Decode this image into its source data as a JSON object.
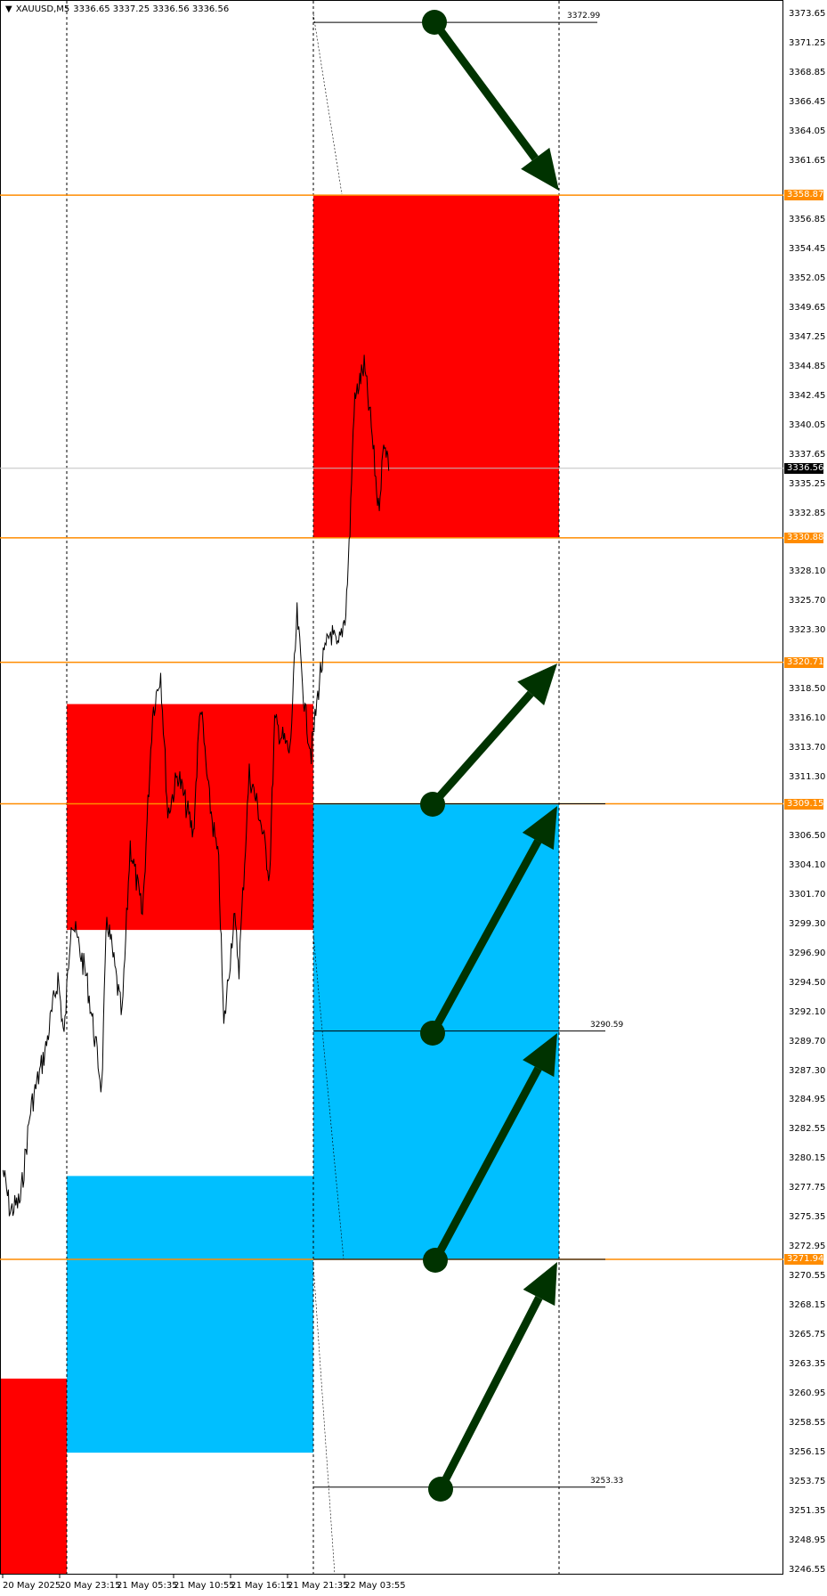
{
  "header": {
    "symbol": "XAUUSD,M5",
    "ohlc": "3336.65 3337.25 3336.56 3336.56"
  },
  "price_axis": [
    "3373.65",
    "3371.25",
    "3368.85",
    "3366.45",
    "3364.05",
    "3361.65",
    "3356.85",
    "3354.45",
    "3352.05",
    "3349.65",
    "3347.25",
    "3344.85",
    "3342.45",
    "3340.05",
    "3337.65",
    "3335.25",
    "3332.85",
    "3328.10",
    "3325.70",
    "3323.30",
    "3318.50",
    "3316.10",
    "3313.70",
    "3311.30",
    "3306.50",
    "3304.10",
    "3301.70",
    "3299.30",
    "3296.90",
    "3294.50",
    "3292.10",
    "3289.70",
    "3287.30",
    "3284.95",
    "3282.55",
    "3280.15",
    "3277.75",
    "3275.35",
    "3272.95",
    "3270.55",
    "3268.15",
    "3265.75",
    "3263.35",
    "3260.95",
    "3258.55",
    "3256.15",
    "3253.75",
    "3251.35",
    "3248.95",
    "3246.55"
  ],
  "price_tags": [
    {
      "price": "3358.87",
      "color": "#ff8c00"
    },
    {
      "price": "3330.88",
      "color": "#ff8c00"
    },
    {
      "price": "3320.71",
      "color": "#ff8c00"
    },
    {
      "price": "3309.15",
      "color": "#ff8c00"
    },
    {
      "price": "3271.94",
      "color": "#ff8c00"
    }
  ],
  "current_price": "3336.56",
  "level_labels": [
    "3372.99",
    "3290.59",
    "3253.33"
  ],
  "time_axis": [
    "20 May 2025",
    "20 May 23:15",
    "21 May 05:35",
    "21 May 10:55",
    "21 May 16:15",
    "21 May 21:35",
    "22 May 03:55"
  ],
  "colors": {
    "sell_zone": "#ff0000",
    "buy_zone": "#00bfff",
    "level_line": "#ff8c00",
    "arrow": "#003300",
    "candles": "#000000"
  }
}
